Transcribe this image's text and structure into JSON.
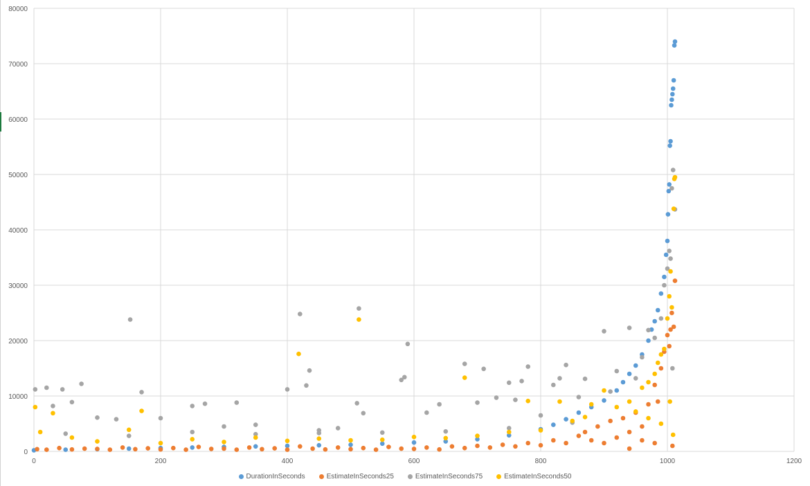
{
  "chart_data": {
    "type": "scatter",
    "title": "",
    "xlabel": "",
    "ylabel": "",
    "xlim": [
      0,
      1200
    ],
    "ylim": [
      0,
      80000
    ],
    "x_ticks": [
      "0",
      "200",
      "400",
      "600",
      "800",
      "1000",
      "1200"
    ],
    "y_ticks": [
      "0",
      "10000",
      "20000",
      "30000",
      "40000",
      "50000",
      "60000",
      "70000",
      "80000"
    ],
    "grid": true,
    "legend_position": "bottom",
    "series": [
      {
        "name": "DurationInSeconds",
        "color": "#5b9bd5",
        "points": [
          [
            0,
            200
          ],
          [
            50,
            300
          ],
          [
            100,
            400
          ],
          [
            150,
            500
          ],
          [
            200,
            600
          ],
          [
            250,
            700
          ],
          [
            300,
            800
          ],
          [
            350,
            900
          ],
          [
            400,
            1000
          ],
          [
            450,
            1100
          ],
          [
            500,
            1200
          ],
          [
            550,
            1400
          ],
          [
            600,
            1600
          ],
          [
            650,
            1800
          ],
          [
            700,
            2200
          ],
          [
            750,
            2900
          ],
          [
            800,
            4000
          ],
          [
            820,
            4800
          ],
          [
            840,
            5800
          ],
          [
            860,
            7000
          ],
          [
            880,
            8000
          ],
          [
            900,
            9200
          ],
          [
            920,
            11000
          ],
          [
            930,
            12500
          ],
          [
            940,
            14000
          ],
          [
            950,
            15500
          ],
          [
            960,
            17500
          ],
          [
            970,
            20000
          ],
          [
            975,
            22000
          ],
          [
            980,
            23500
          ],
          [
            985,
            25500
          ],
          [
            990,
            28500
          ],
          [
            995,
            31500
          ],
          [
            998,
            35500
          ],
          [
            1000,
            38000
          ],
          [
            1001,
            42800
          ],
          [
            1002,
            47000
          ],
          [
            1003,
            48200
          ],
          [
            1004,
            55200
          ],
          [
            1005,
            56000
          ],
          [
            1006,
            62500
          ],
          [
            1007,
            63500
          ],
          [
            1008,
            64500
          ],
          [
            1009,
            65500
          ],
          [
            1010,
            67000
          ],
          [
            1011,
            73300
          ],
          [
            1012,
            74000
          ]
        ]
      },
      {
        "name": "EstimateInSeconds25",
        "color": "#ed7d31",
        "points": [
          [
            5,
            400
          ],
          [
            20,
            300
          ],
          [
            40,
            600
          ],
          [
            60,
            350
          ],
          [
            80,
            500
          ],
          [
            100,
            450
          ],
          [
            120,
            300
          ],
          [
            140,
            700
          ],
          [
            160,
            400
          ],
          [
            180,
            550
          ],
          [
            200,
            350
          ],
          [
            220,
            600
          ],
          [
            240,
            300
          ],
          [
            260,
            800
          ],
          [
            280,
            450
          ],
          [
            300,
            500
          ],
          [
            320,
            300
          ],
          [
            340,
            700
          ],
          [
            360,
            400
          ],
          [
            380,
            550
          ],
          [
            400,
            300
          ],
          [
            420,
            900
          ],
          [
            440,
            500
          ],
          [
            460,
            350
          ],
          [
            480,
            700
          ],
          [
            500,
            400
          ],
          [
            520,
            600
          ],
          [
            540,
            300
          ],
          [
            560,
            800
          ],
          [
            580,
            500
          ],
          [
            600,
            450
          ],
          [
            620,
            700
          ],
          [
            640,
            350
          ],
          [
            660,
            900
          ],
          [
            680,
            600
          ],
          [
            700,
            1000
          ],
          [
            720,
            700
          ],
          [
            740,
            1200
          ],
          [
            760,
            900
          ],
          [
            780,
            1500
          ],
          [
            800,
            1100
          ],
          [
            820,
            2000
          ],
          [
            840,
            1500
          ],
          [
            860,
            2800
          ],
          [
            870,
            3500
          ],
          [
            880,
            2000
          ],
          [
            890,
            4500
          ],
          [
            900,
            1500
          ],
          [
            910,
            5500
          ],
          [
            920,
            2500
          ],
          [
            930,
            6000
          ],
          [
            940,
            3500
          ],
          [
            950,
            7000
          ],
          [
            960,
            4500
          ],
          [
            970,
            8500
          ],
          [
            980,
            12000
          ],
          [
            985,
            9000
          ],
          [
            990,
            15000
          ],
          [
            995,
            18000
          ],
          [
            1000,
            21000
          ],
          [
            1003,
            19000
          ],
          [
            1005,
            22000
          ],
          [
            1007,
            25000
          ],
          [
            1010,
            22500
          ],
          [
            1012,
            30800
          ],
          [
            1008,
            1000
          ],
          [
            980,
            1500
          ],
          [
            960,
            2000
          ],
          [
            940,
            500
          ]
        ]
      },
      {
        "name": "EstimateInSeconds75",
        "color": "#a5a5a5",
        "points": [
          [
            2,
            11200
          ],
          [
            20,
            11500
          ],
          [
            30,
            8200
          ],
          [
            45,
            11200
          ],
          [
            60,
            8900
          ],
          [
            75,
            12200
          ],
          [
            100,
            6100
          ],
          [
            130,
            5800
          ],
          [
            152,
            23800
          ],
          [
            170,
            10700
          ],
          [
            200,
            6000
          ],
          [
            250,
            8200
          ],
          [
            270,
            8600
          ],
          [
            300,
            4500
          ],
          [
            320,
            8800
          ],
          [
            350,
            4800
          ],
          [
            400,
            11200
          ],
          [
            420,
            24800
          ],
          [
            430,
            11900
          ],
          [
            435,
            14600
          ],
          [
            450,
            3800
          ],
          [
            480,
            4200
          ],
          [
            510,
            8700
          ],
          [
            513,
            25800
          ],
          [
            520,
            6900
          ],
          [
            580,
            12900
          ],
          [
            585,
            13400
          ],
          [
            590,
            19400
          ],
          [
            620,
            7000
          ],
          [
            640,
            8500
          ],
          [
            680,
            15800
          ],
          [
            700,
            8800
          ],
          [
            710,
            14900
          ],
          [
            730,
            9700
          ],
          [
            750,
            12400
          ],
          [
            760,
            9300
          ],
          [
            770,
            12700
          ],
          [
            780,
            15300
          ],
          [
            800,
            6500
          ],
          [
            820,
            12000
          ],
          [
            830,
            13200
          ],
          [
            840,
            15600
          ],
          [
            860,
            9800
          ],
          [
            870,
            13100
          ],
          [
            900,
            21700
          ],
          [
            910,
            10800
          ],
          [
            920,
            14500
          ],
          [
            940,
            22300
          ],
          [
            950,
            13200
          ],
          [
            960,
            17000
          ],
          [
            970,
            21900
          ],
          [
            980,
            20500
          ],
          [
            990,
            24000
          ],
          [
            995,
            30000
          ],
          [
            1000,
            33000
          ],
          [
            1003,
            36200
          ],
          [
            1005,
            34800
          ],
          [
            1007,
            47500
          ],
          [
            1009,
            50800
          ],
          [
            1012,
            43700
          ],
          [
            1008,
            15000
          ],
          [
            50,
            3200
          ],
          [
            150,
            2800
          ],
          [
            250,
            3500
          ],
          [
            350,
            3100
          ],
          [
            450,
            3300
          ],
          [
            550,
            3400
          ],
          [
            650,
            3600
          ],
          [
            750,
            4200
          ],
          [
            850,
            5200
          ]
        ]
      },
      {
        "name": "EstimateInSeconds50",
        "color": "#ffc000",
        "points": [
          [
            2,
            8000
          ],
          [
            10,
            3500
          ],
          [
            30,
            6900
          ],
          [
            60,
            2500
          ],
          [
            100,
            1800
          ],
          [
            150,
            3900
          ],
          [
            170,
            7300
          ],
          [
            200,
            1500
          ],
          [
            250,
            2200
          ],
          [
            300,
            1700
          ],
          [
            350,
            2500
          ],
          [
            400,
            1900
          ],
          [
            418,
            17600
          ],
          [
            450,
            2300
          ],
          [
            500,
            2000
          ],
          [
            513,
            23800
          ],
          [
            550,
            2100
          ],
          [
            600,
            2600
          ],
          [
            650,
            2400
          ],
          [
            680,
            13300
          ],
          [
            700,
            2800
          ],
          [
            750,
            3500
          ],
          [
            780,
            9100
          ],
          [
            800,
            3800
          ],
          [
            830,
            9000
          ],
          [
            850,
            5500
          ],
          [
            870,
            6200
          ],
          [
            880,
            8500
          ],
          [
            900,
            11000
          ],
          [
            920,
            8000
          ],
          [
            940,
            9000
          ],
          [
            950,
            7200
          ],
          [
            960,
            11500
          ],
          [
            970,
            12500
          ],
          [
            980,
            14000
          ],
          [
            985,
            16000
          ],
          [
            990,
            17500
          ],
          [
            995,
            18500
          ],
          [
            1000,
            24000
          ],
          [
            1003,
            28000
          ],
          [
            1005,
            32500
          ],
          [
            1007,
            26000
          ],
          [
            1010,
            43800
          ],
          [
            1011,
            49200
          ],
          [
            1012,
            49500
          ],
          [
            1009,
            3000
          ],
          [
            1004,
            9000
          ],
          [
            990,
            5000
          ],
          [
            970,
            6000
          ]
        ]
      }
    ]
  }
}
